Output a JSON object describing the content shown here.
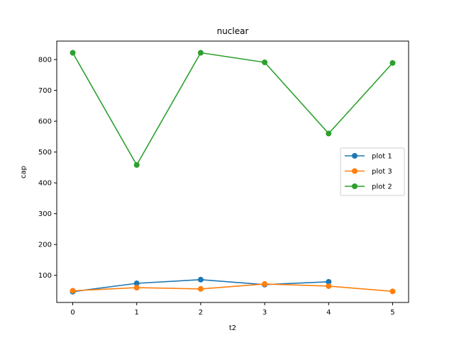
{
  "chart_data": {
    "type": "line",
    "title": "nuclear",
    "xlabel": "t2",
    "ylabel": "cap",
    "xlim": [
      -0.25,
      5.25
    ],
    "ylim": [
      12,
      860
    ],
    "xticks": [
      0,
      1,
      2,
      3,
      4,
      5
    ],
    "yticks": [
      100,
      200,
      300,
      400,
      500,
      600,
      700,
      800
    ],
    "grid": false,
    "legend_position": "center-right",
    "series": [
      {
        "name": "plot 1",
        "color": "#1f77b4",
        "x": [
          0,
          1,
          2,
          3,
          4
        ],
        "y": [
          47,
          74,
          86,
          70,
          79
        ]
      },
      {
        "name": "plot 3",
        "color": "#ff7f0e",
        "x": [
          0,
          1,
          2,
          3,
          4,
          5
        ],
        "y": [
          50,
          60,
          56,
          72,
          65,
          48
        ]
      },
      {
        "name": "plot 2",
        "color": "#2ca02c",
        "x": [
          0,
          1,
          2,
          3,
          4,
          5
        ],
        "y": [
          822,
          458,
          822,
          791,
          560,
          789
        ]
      }
    ]
  }
}
